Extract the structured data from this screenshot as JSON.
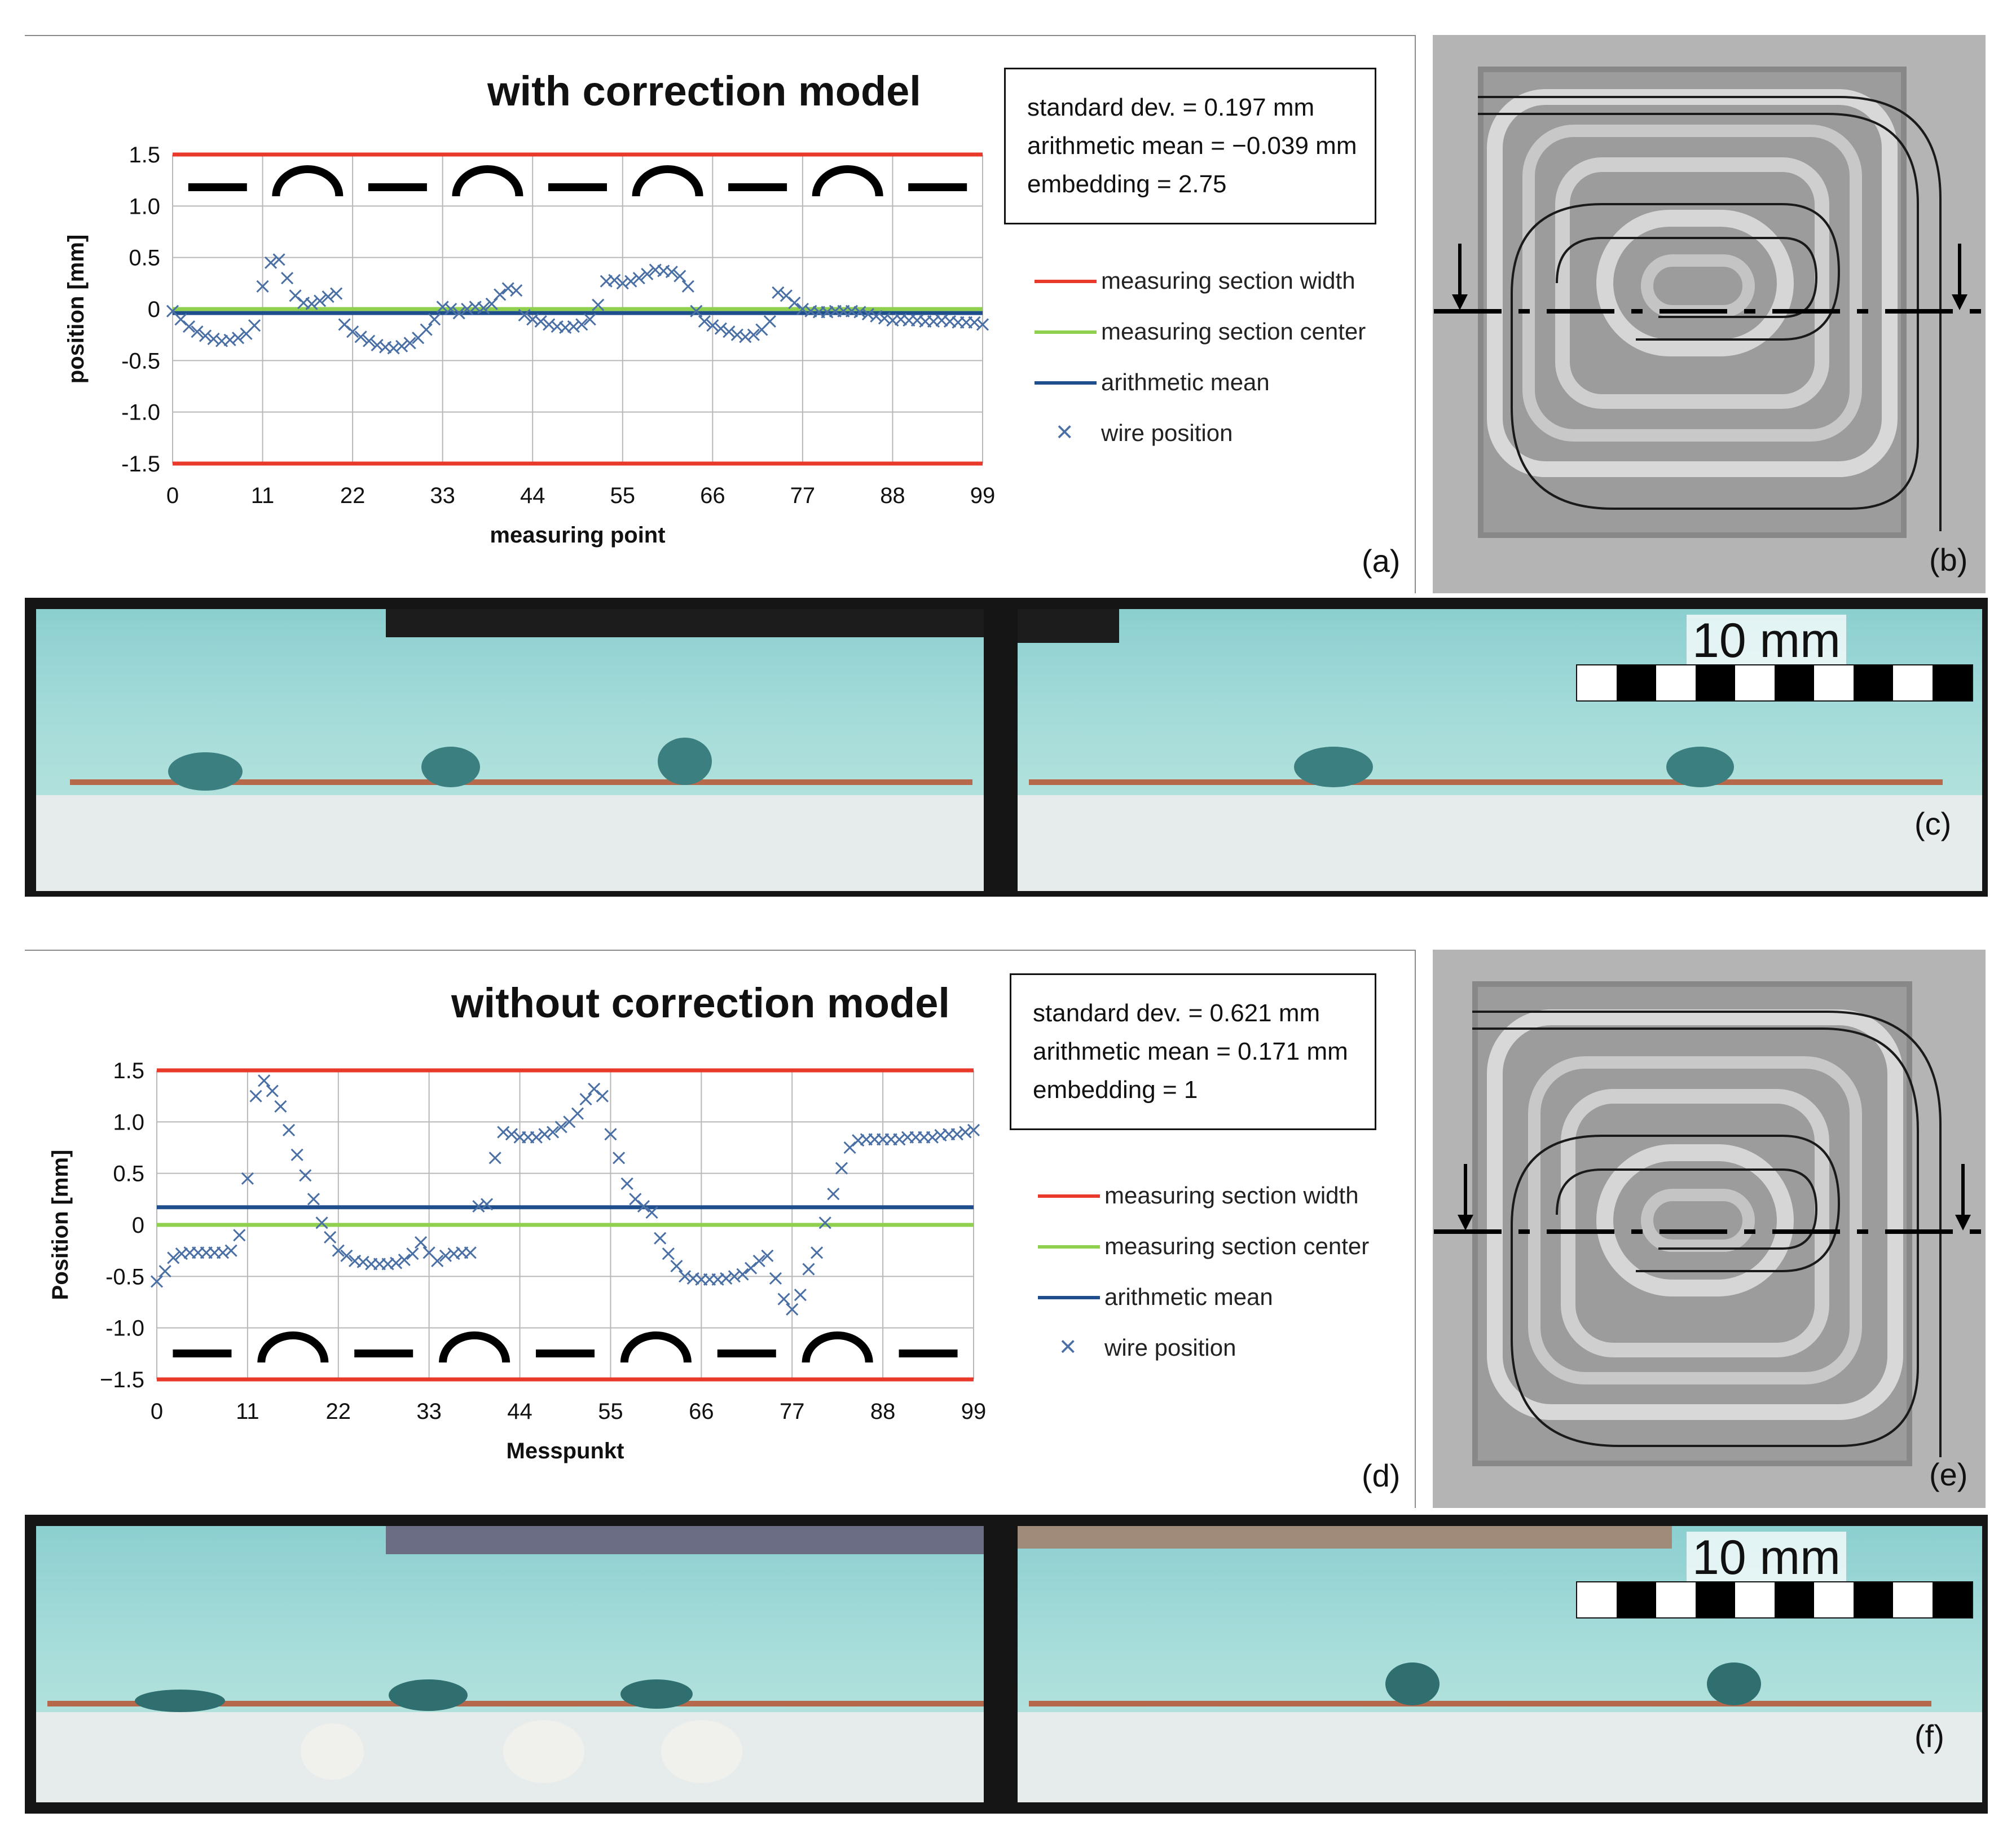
{
  "panel_a": {
    "title": "with correction model",
    "stats": [
      "standard dev. = 0.197 mm",
      "arithmetic mean = −0.039 mm",
      "embedding = 2.75"
    ],
    "legend": [
      {
        "label": "measuring section width",
        "color": "#e8392a",
        "kind": "line"
      },
      {
        "label": "measuring section center",
        "color": "#8fd14f",
        "kind": "line"
      },
      {
        "label": "arithmetic mean",
        "color": "#1f4e8c",
        "kind": "line"
      },
      {
        "label": "wire position",
        "color": "#4a6fa5",
        "kind": "marker"
      }
    ],
    "label": "(a)"
  },
  "panel_b": {
    "label": "(b)"
  },
  "panel_c": {
    "label": "(c)",
    "scale_text": "10 mm"
  },
  "panel_d": {
    "title": "without correction model",
    "stats": [
      "standard dev. = 0.621 mm",
      "arithmetic mean = 0.171 mm",
      "embedding = 1"
    ],
    "legend": [
      {
        "label": "measuring section width",
        "color": "#e8392a",
        "kind": "line"
      },
      {
        "label": "measuring section center",
        "color": "#8fd14f",
        "kind": "line"
      },
      {
        "label": "arithmetic mean",
        "color": "#1f4e8c",
        "kind": "line"
      },
      {
        "label": "wire position",
        "color": "#4a6fa5",
        "kind": "marker"
      }
    ],
    "label": "(d)"
  },
  "panel_e": {
    "label": "(e)"
  },
  "panel_f": {
    "label": "(f)",
    "scale_text": "10 mm"
  },
  "chart_data": [
    {
      "type": "scatter",
      "title": "with correction model",
      "xlabel": "measuring point",
      "ylabel": "position [mm]",
      "xlim": [
        0,
        99
      ],
      "ylim": [
        -1.5,
        1.5
      ],
      "xticks": [
        0,
        11,
        22,
        33,
        44,
        55,
        66,
        77,
        88,
        99
      ],
      "yticks": [
        1.5,
        1.0,
        0.5,
        0,
        -0.5,
        -1.0,
        -1.5
      ],
      "ytick_labels": [
        "1.5",
        "1.0",
        "0.5",
        "0",
        "-0.5",
        "-1.0",
        "-1.5"
      ],
      "grid": true,
      "legend_position": "right",
      "segment_icons": [
        "straight",
        "arc",
        "straight",
        "arc",
        "straight",
        "arc",
        "straight",
        "arc",
        "straight"
      ],
      "segment_icon_position": "top",
      "reference_lines": [
        {
          "name": "measuring section width",
          "y": 1.5,
          "color": "#e8392a"
        },
        {
          "name": "measuring section width",
          "y": -1.5,
          "color": "#e8392a"
        },
        {
          "name": "measuring section center",
          "y": 0,
          "color": "#8fd14f"
        },
        {
          "name": "arithmetic mean",
          "y": -0.039,
          "color": "#1f4e8c"
        }
      ],
      "series": [
        {
          "name": "wire position",
          "color": "#4a6fa5",
          "x": [
            0,
            1,
            2,
            3,
            4,
            5,
            6,
            7,
            8,
            9,
            10,
            11,
            12,
            13,
            14,
            15,
            16,
            17,
            18,
            19,
            20,
            21,
            22,
            23,
            24,
            25,
            26,
            27,
            28,
            29,
            30,
            31,
            32,
            33,
            34,
            35,
            36,
            37,
            38,
            39,
            40,
            41,
            42,
            43,
            44,
            45,
            46,
            47,
            48,
            49,
            50,
            51,
            52,
            53,
            54,
            55,
            56,
            57,
            58,
            59,
            60,
            61,
            62,
            63,
            64,
            65,
            66,
            67,
            68,
            69,
            70,
            71,
            72,
            73,
            74,
            75,
            76,
            77,
            78,
            79,
            80,
            81,
            82,
            83,
            84,
            85,
            86,
            87,
            88,
            89,
            90,
            91,
            92,
            93,
            94,
            95,
            96,
            97,
            98,
            99
          ],
          "values": [
            -0.02,
            -0.1,
            -0.17,
            -0.22,
            -0.26,
            -0.29,
            -0.31,
            -0.3,
            -0.28,
            -0.24,
            -0.16,
            0.22,
            0.45,
            0.48,
            0.3,
            0.13,
            0.06,
            0.05,
            0.08,
            0.12,
            0.15,
            -0.15,
            -0.22,
            -0.27,
            -0.31,
            -0.35,
            -0.37,
            -0.38,
            -0.36,
            -0.33,
            -0.28,
            -0.2,
            -0.1,
            0.02,
            0.0,
            -0.04,
            0.0,
            0.02,
            0.01,
            0.05,
            0.14,
            0.2,
            0.18,
            -0.06,
            -0.1,
            -0.12,
            -0.15,
            -0.17,
            -0.18,
            -0.17,
            -0.15,
            -0.1,
            0.04,
            0.27,
            0.28,
            0.25,
            0.27,
            0.3,
            0.34,
            0.38,
            0.37,
            0.36,
            0.32,
            0.22,
            -0.02,
            -0.12,
            -0.16,
            -0.19,
            -0.22,
            -0.25,
            -0.27,
            -0.25,
            -0.2,
            -0.12,
            0.16,
            0.13,
            0.06,
            0.0,
            -0.02,
            -0.03,
            -0.03,
            -0.02,
            -0.02,
            -0.02,
            -0.03,
            -0.05,
            -0.07,
            -0.09,
            -0.11,
            -0.1,
            -0.11,
            -0.11,
            -0.12,
            -0.12,
            -0.11,
            -0.12,
            -0.13,
            -0.13,
            -0.13,
            -0.15
          ]
        }
      ]
    },
    {
      "type": "scatter",
      "title": "without correction model",
      "xlabel": "Messpunkt",
      "ylabel": "Position [mm]",
      "xlim": [
        0,
        99
      ],
      "ylim": [
        -1.5,
        1.5
      ],
      "xticks": [
        0,
        11,
        22,
        33,
        44,
        55,
        66,
        77,
        88,
        99
      ],
      "yticks": [
        1.5,
        1.0,
        0.5,
        0,
        -0.5,
        -1.0,
        -1.5
      ],
      "ytick_labels": [
        "1.5",
        "1.0",
        "0.5",
        "0",
        "-0.5",
        "-1.0",
        "−1.5"
      ],
      "grid": true,
      "legend_position": "right",
      "segment_icons": [
        "straight",
        "arc",
        "straight",
        "arc",
        "straight",
        "arc",
        "straight",
        "arc",
        "straight"
      ],
      "segment_icon_position": "bottom",
      "reference_lines": [
        {
          "name": "measuring section width",
          "y": 1.5,
          "color": "#e8392a"
        },
        {
          "name": "measuring section width",
          "y": -1.5,
          "color": "#e8392a"
        },
        {
          "name": "measuring section center",
          "y": 0,
          "color": "#8fd14f"
        },
        {
          "name": "arithmetic mean",
          "y": 0.171,
          "color": "#1f4e8c"
        }
      ],
      "series": [
        {
          "name": "wire position",
          "color": "#4a6fa5",
          "x": [
            0,
            1,
            2,
            3,
            4,
            5,
            6,
            7,
            8,
            9,
            10,
            11,
            12,
            13,
            14,
            15,
            16,
            17,
            18,
            19,
            20,
            21,
            22,
            23,
            24,
            25,
            26,
            27,
            28,
            29,
            30,
            31,
            32,
            33,
            34,
            35,
            36,
            37,
            38,
            39,
            40,
            41,
            42,
            43,
            44,
            45,
            46,
            47,
            48,
            49,
            50,
            51,
            52,
            53,
            54,
            55,
            56,
            57,
            58,
            59,
            60,
            61,
            62,
            63,
            64,
            65,
            66,
            67,
            68,
            69,
            70,
            71,
            72,
            73,
            74,
            75,
            76,
            77,
            78,
            79,
            80,
            81,
            82,
            83,
            84,
            85,
            86,
            87,
            88,
            89,
            90,
            91,
            92,
            93,
            94,
            95,
            96,
            97,
            98,
            99
          ],
          "values": [
            -0.55,
            -0.45,
            -0.32,
            -0.28,
            -0.27,
            -0.27,
            -0.27,
            -0.27,
            -0.27,
            -0.25,
            -0.1,
            0.45,
            1.25,
            1.4,
            1.3,
            1.15,
            0.92,
            0.68,
            0.48,
            0.25,
            0.02,
            -0.12,
            -0.25,
            -0.3,
            -0.35,
            -0.36,
            -0.38,
            -0.38,
            -0.38,
            -0.37,
            -0.34,
            -0.28,
            -0.17,
            -0.27,
            -0.35,
            -0.3,
            -0.28,
            -0.27,
            -0.27,
            0.18,
            0.2,
            0.65,
            0.9,
            0.88,
            0.85,
            0.85,
            0.85,
            0.88,
            0.9,
            0.95,
            1.0,
            1.08,
            1.22,
            1.32,
            1.25,
            0.88,
            0.65,
            0.4,
            0.25,
            0.18,
            0.12,
            -0.13,
            -0.28,
            -0.4,
            -0.5,
            -0.52,
            -0.53,
            -0.53,
            -0.53,
            -0.52,
            -0.5,
            -0.48,
            -0.42,
            -0.35,
            -0.3,
            -0.52,
            -0.72,
            -0.82,
            -0.68,
            -0.43,
            -0.27,
            0.02,
            0.3,
            0.55,
            0.75,
            0.82,
            0.83,
            0.83,
            0.83,
            0.83,
            0.83,
            0.85,
            0.85,
            0.85,
            0.85,
            0.87,
            0.88,
            0.88,
            0.9,
            0.92
          ]
        }
      ]
    }
  ]
}
